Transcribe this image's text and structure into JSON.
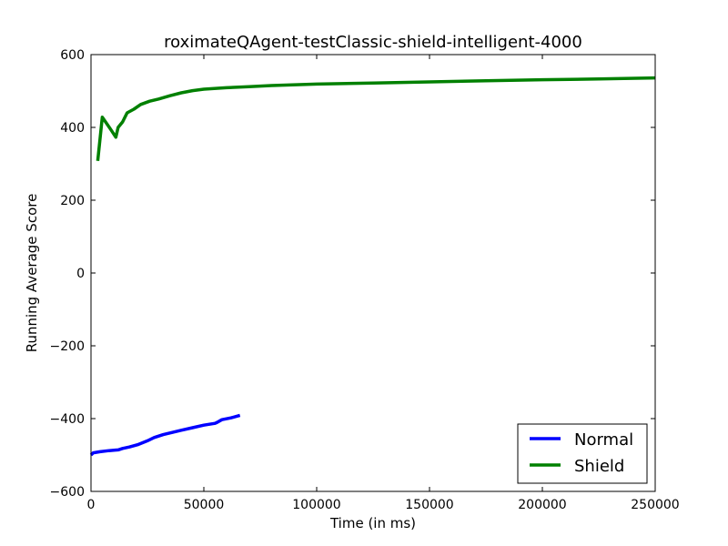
{
  "chart_data": {
    "type": "line",
    "title": "roximateQAgent-testClassic-shield-intelligent-4000",
    "xlabel": "Time (in ms)",
    "ylabel": "Running Average Score",
    "xlim": [
      0,
      250000
    ],
    "ylim": [
      -600,
      600
    ],
    "xticks": [
      0,
      50000,
      100000,
      150000,
      200000,
      250000
    ],
    "yticks": [
      -600,
      -400,
      -200,
      0,
      200,
      400,
      600
    ],
    "xtick_labels": [
      "0",
      "50000",
      "100000",
      "150000",
      "200000",
      "250000"
    ],
    "ytick_labels": [
      "−600",
      "−400",
      "−200",
      "0",
      "200",
      "400",
      "600"
    ],
    "grid": false,
    "legend_position": "lower-right",
    "series": [
      {
        "name": "Normal",
        "color": "#0000ff",
        "points": [
          [
            0,
            -500
          ],
          [
            1000,
            -494
          ],
          [
            4000,
            -491
          ],
          [
            8000,
            -488
          ],
          [
            12000,
            -486
          ],
          [
            14000,
            -482
          ],
          [
            17000,
            -478
          ],
          [
            21000,
            -471
          ],
          [
            25000,
            -461
          ],
          [
            28000,
            -452
          ],
          [
            32000,
            -444
          ],
          [
            36000,
            -438
          ],
          [
            40000,
            -432
          ],
          [
            45000,
            -425
          ],
          [
            50000,
            -418
          ],
          [
            55000,
            -413
          ],
          [
            56000,
            -410
          ],
          [
            58000,
            -403
          ],
          [
            62000,
            -398
          ],
          [
            66000,
            -391
          ]
        ]
      },
      {
        "name": "Shield",
        "color": "#008000",
        "points": [
          [
            3000,
            308
          ],
          [
            5000,
            428
          ],
          [
            7000,
            410
          ],
          [
            9000,
            392
          ],
          [
            11000,
            373
          ],
          [
            12000,
            400
          ],
          [
            14000,
            415
          ],
          [
            16000,
            440
          ],
          [
            19000,
            450
          ],
          [
            22000,
            463
          ],
          [
            26000,
            472
          ],
          [
            30000,
            478
          ],
          [
            35000,
            487
          ],
          [
            40000,
            495
          ],
          [
            45000,
            501
          ],
          [
            50000,
            505
          ],
          [
            60000,
            509
          ],
          [
            70000,
            512
          ],
          [
            80000,
            515
          ],
          [
            100000,
            519
          ],
          [
            125000,
            522
          ],
          [
            150000,
            525
          ],
          [
            175000,
            528
          ],
          [
            200000,
            531
          ],
          [
            225000,
            533
          ],
          [
            250000,
            536
          ]
        ]
      }
    ]
  }
}
